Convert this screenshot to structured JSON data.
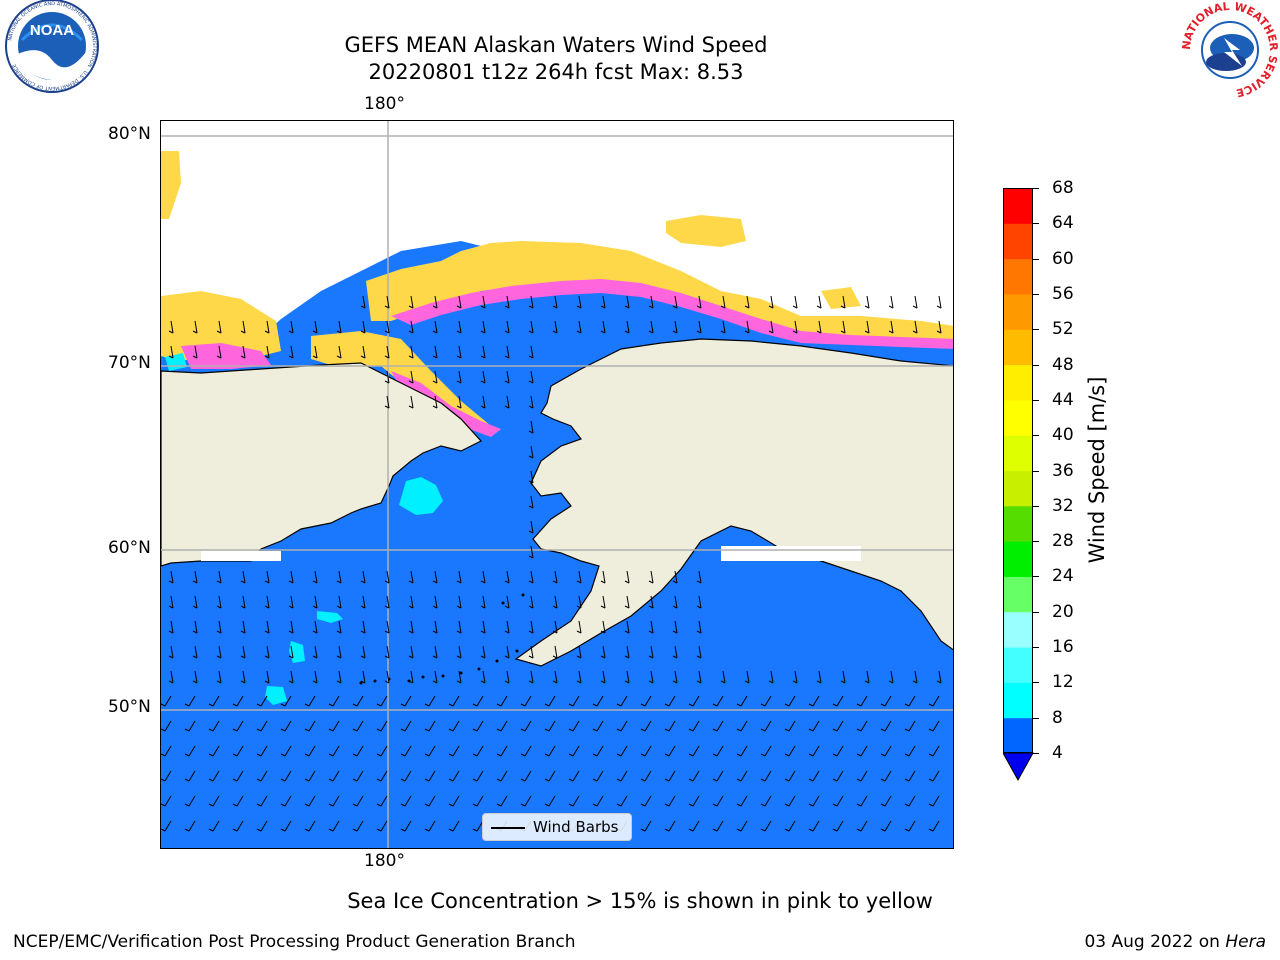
{
  "header": {
    "title_line1": "GEFS MEAN Alaskan Waters Wind Speed",
    "title_line2": "20220801 t12z 264h fcst   Max: 8.53"
  },
  "logos": {
    "left": "NOAA",
    "left_ring_text": "NATIONAL OCEANIC AND ATMOSPHERIC ADMINISTRATION · U.S. DEPARTMENT OF COMMERCE",
    "right_ring_text": "NATIONAL WEATHER SERVICE"
  },
  "map": {
    "lon_label_top": "180°",
    "lon_label_bottom": "180°",
    "lat_labels": [
      "80°N",
      "70°N",
      "60°N",
      "50°N"
    ],
    "colors": {
      "ocean": "#1a78ff",
      "land": "#efeedc",
      "ice_pink": "#ff66dd",
      "ice_yellow": "#ffd84a",
      "gridline": "#b0b0b0"
    }
  },
  "legend": {
    "label": "Wind Barbs"
  },
  "colorbar": {
    "label": "Wind Speed [m/s]",
    "ticks": [
      "68",
      "64",
      "60",
      "56",
      "52",
      "48",
      "44",
      "40",
      "36",
      "32",
      "28",
      "24",
      "20",
      "16",
      "12",
      "8",
      "4"
    ],
    "colors": [
      "#0066ff",
      "#00ffff",
      "#44ffff",
      "#99ffff",
      "#66ff66",
      "#00ee00",
      "#55dd00",
      "#c8ee00",
      "#ddff00",
      "#ffff00",
      "#ffee00",
      "#ffbb00",
      "#ff9900",
      "#ff7700",
      "#ff4400",
      "#ff0000"
    ],
    "under_color": "#0000ee"
  },
  "caption": "Sea Ice Concentration > 15% is shown in pink to yellow",
  "footer": {
    "left": "NCEP/EMC/Verification Post Processing Product Generation Branch",
    "right_date": "03 Aug 2022 on",
    "right_host": "Hera"
  }
}
